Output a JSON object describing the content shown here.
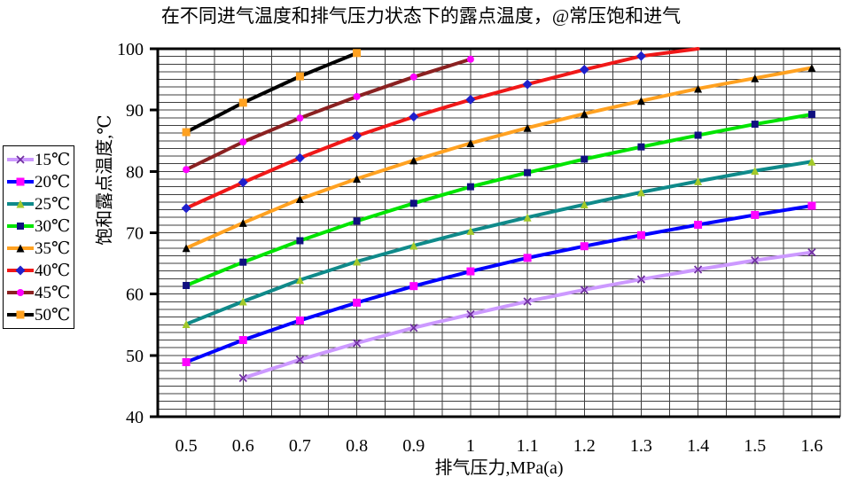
{
  "page": {
    "background": "#ffffff"
  },
  "chart_data": {
    "type": "line",
    "title": "在不同进气温度和排气压力状态下的露点温度，@常压饱和进气",
    "xlabel": "排气压力,MPa(a)",
    "ylabel": "饱和露点温度,℃",
    "xlim": [
      0.45,
      1.65
    ],
    "ylim": [
      40,
      100
    ],
    "x_ticks": [
      0.5,
      0.6,
      0.7,
      0.8,
      0.9,
      1.0,
      1.1,
      1.2,
      1.3,
      1.4,
      1.5,
      1.6
    ],
    "x_tick_labels": [
      "0.5",
      "0.6",
      "0.7",
      "0.8",
      "0.9",
      "1",
      "1.1",
      "1.2",
      "1.3",
      "1.4",
      "1.5",
      "1.6"
    ],
    "y_ticks": [
      40,
      50,
      60,
      70,
      80,
      90,
      100
    ],
    "x_minor_step": 0.05,
    "y_minor_step": 1.25,
    "grid": true,
    "grid_color": "#3f3f3f",
    "frame_color": "#000000",
    "legend_position": "left",
    "series": [
      {
        "name": "15℃",
        "line_color": "#CC99FF",
        "marker": "x",
        "marker_color": "#7030A0",
        "marker_size": 8,
        "x": [
          0.6,
          0.7,
          0.8,
          0.9,
          1.0,
          1.1,
          1.2,
          1.3,
          1.4,
          1.5,
          1.6
        ],
        "y": [
          46.3,
          49.3,
          52.0,
          54.5,
          56.7,
          58.8,
          60.7,
          62.4,
          64.0,
          65.5,
          66.8
        ]
      },
      {
        "name": "20℃",
        "line_color": "#0000FF",
        "marker": "square",
        "marker_color": "#FF00FF",
        "marker_size": 9,
        "x": [
          0.5,
          0.6,
          0.7,
          0.8,
          0.9,
          1.0,
          1.1,
          1.2,
          1.3,
          1.4,
          1.5,
          1.6
        ],
        "y": [
          48.9,
          52.5,
          55.7,
          58.6,
          61.3,
          63.7,
          65.9,
          67.8,
          69.6,
          71.3,
          72.9,
          74.4
        ]
      },
      {
        "name": "25℃",
        "line_color": "#0F8A8A",
        "marker": "triangle",
        "marker_color": "#A3C929",
        "marker_size": 9,
        "x": [
          0.5,
          0.6,
          0.7,
          0.8,
          0.9,
          1.0,
          1.1,
          1.2,
          1.3,
          1.4,
          1.5,
          1.6
        ],
        "y": [
          55.1,
          58.8,
          62.3,
          65.3,
          67.9,
          70.3,
          72.5,
          74.6,
          76.6,
          78.4,
          80.1,
          81.6
        ]
      },
      {
        "name": "30℃",
        "line_color": "#00E400",
        "marker": "square",
        "marker_color": "#101080",
        "marker_size": 8,
        "x": [
          0.5,
          0.6,
          0.7,
          0.8,
          0.9,
          1.0,
          1.1,
          1.2,
          1.3,
          1.4,
          1.5,
          1.6
        ],
        "y": [
          61.4,
          65.2,
          68.7,
          71.9,
          74.8,
          77.5,
          79.8,
          82.0,
          84.0,
          85.9,
          87.7,
          89.3
        ]
      },
      {
        "name": "35℃",
        "line_color": "#FFA120",
        "marker": "triangle",
        "marker_color": "#000000",
        "marker_size": 9,
        "x": [
          0.5,
          0.6,
          0.7,
          0.8,
          0.9,
          1.0,
          1.1,
          1.2,
          1.3,
          1.4,
          1.5,
          1.6
        ],
        "y": [
          67.5,
          71.6,
          75.5,
          78.8,
          81.8,
          84.6,
          87.1,
          89.4,
          91.5,
          93.5,
          95.2,
          96.9
        ]
      },
      {
        "name": "40℃",
        "line_color": "#F01818",
        "marker": "diamond",
        "marker_color": "#2020CC",
        "marker_size": 9,
        "end_marker": false,
        "x": [
          0.5,
          0.6,
          0.7,
          0.8,
          0.9,
          1.0,
          1.1,
          1.2,
          1.3,
          1.4
        ],
        "y": [
          74.0,
          78.2,
          82.2,
          85.8,
          88.9,
          91.7,
          94.2,
          96.6,
          98.8,
          100.0
        ]
      },
      {
        "name": "45℃",
        "line_color": "#8B2121",
        "marker": "circle",
        "marker_color": "#FF00FF",
        "marker_size": 8,
        "x": [
          0.5,
          0.6,
          0.7,
          0.8,
          0.9,
          1.0
        ],
        "y": [
          80.3,
          84.8,
          88.7,
          92.2,
          95.4,
          98.3
        ]
      },
      {
        "name": "50℃",
        "line_color": "#000000",
        "marker": "square",
        "marker_color": "#FFA120",
        "marker_size": 9,
        "x": [
          0.5,
          0.6,
          0.7,
          0.8
        ],
        "y": [
          86.4,
          91.2,
          95.5,
          99.3
        ]
      }
    ]
  }
}
